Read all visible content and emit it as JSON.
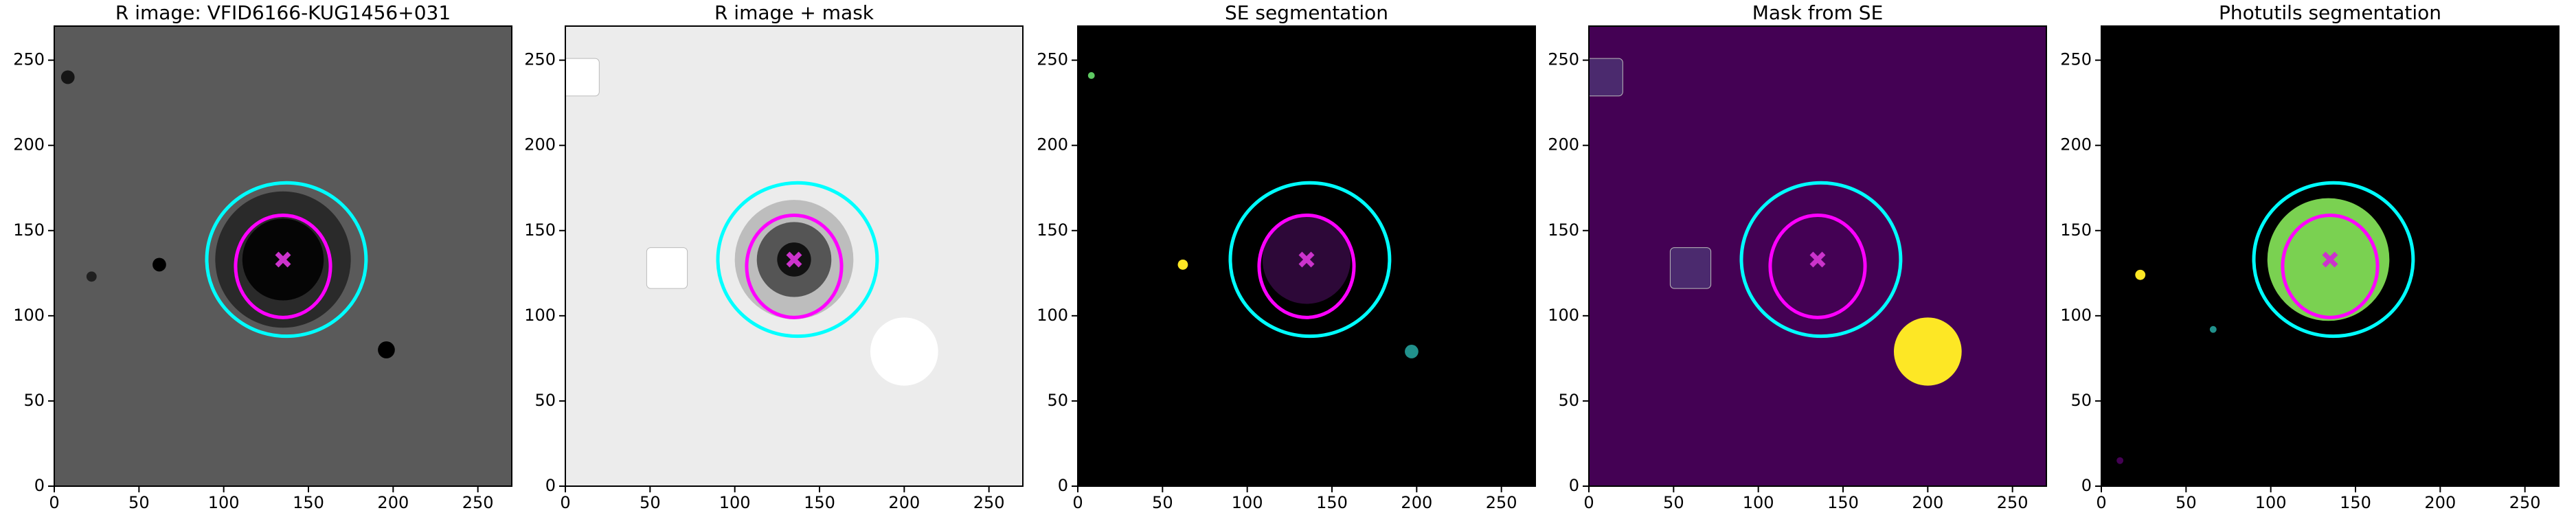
{
  "chart_data": [
    {
      "type": "image",
      "title": "R image: VFID6166-KUG1456+031",
      "background": "#5a5a5a",
      "xlim": [
        0,
        270
      ],
      "ylim": [
        0,
        270
      ],
      "xticks": [
        0,
        50,
        100,
        150,
        200,
        250
      ],
      "yticks": [
        0,
        50,
        100,
        150,
        200,
        250
      ],
      "regions": [
        {
          "shape": "circle",
          "cx": 135,
          "cy": 133,
          "r": 40,
          "color": "#2a2a2a"
        },
        {
          "shape": "circle",
          "cx": 135,
          "cy": 133,
          "r": 24,
          "color": "#050505"
        },
        {
          "shape": "circle",
          "cx": 196,
          "cy": 80,
          "r": 5,
          "color": "#000000"
        },
        {
          "shape": "circle",
          "cx": 62,
          "cy": 130,
          "r": 4,
          "color": "#000000"
        },
        {
          "shape": "circle",
          "cx": 8,
          "cy": 240,
          "r": 4,
          "color": "#151515"
        },
        {
          "shape": "circle",
          "cx": 22,
          "cy": 123,
          "r": 3,
          "color": "#202020"
        }
      ],
      "ellipses": [
        {
          "cx": 137,
          "cy": 133,
          "rx": 47,
          "ry": 45,
          "color": "#00ffff"
        },
        {
          "cx": 135,
          "cy": 129,
          "rx": 28,
          "ry": 30,
          "color": "#ff00ff"
        }
      ],
      "marker": {
        "x": 135,
        "y": 133,
        "color": "#cc33cc"
      }
    },
    {
      "type": "image",
      "title": "R image + mask",
      "background": "#ececec",
      "xlim": [
        0,
        270
      ],
      "ylim": [
        0,
        270
      ],
      "xticks": [
        0,
        50,
        100,
        150,
        200,
        250
      ],
      "yticks": [
        0,
        50,
        100,
        150,
        200,
        250
      ],
      "regions": [
        {
          "shape": "circle",
          "cx": 135,
          "cy": 133,
          "r": 35,
          "color": "#bdbdbd"
        },
        {
          "shape": "circle",
          "cx": 135,
          "cy": 133,
          "r": 22,
          "color": "#555555"
        },
        {
          "shape": "circle",
          "cx": 135,
          "cy": 133,
          "r": 10,
          "color": "#111111"
        },
        {
          "shape": "circle",
          "cx": 200,
          "cy": 79,
          "r": 20,
          "color": "#ffffff"
        },
        {
          "shape": "square",
          "cx": 60,
          "cy": 128,
          "r": 12,
          "color": "#ffffff"
        },
        {
          "shape": "square",
          "cx": 9,
          "cy": 240,
          "r": 11,
          "color": "#ffffff"
        }
      ],
      "ellipses": [
        {
          "cx": 137,
          "cy": 133,
          "rx": 47,
          "ry": 45,
          "color": "#00ffff"
        },
        {
          "cx": 135,
          "cy": 129,
          "rx": 28,
          "ry": 30,
          "color": "#ff00ff"
        }
      ],
      "marker": {
        "x": 135,
        "y": 133,
        "color": "#cc33cc"
      }
    },
    {
      "type": "image",
      "title": "SE segmentation",
      "background": "#000000",
      "xlim": [
        0,
        270
      ],
      "ylim": [
        0,
        270
      ],
      "xticks": [
        0,
        50,
        100,
        150,
        200,
        250
      ],
      "yticks": [
        0,
        50,
        100,
        150,
        200,
        250
      ],
      "regions": [
        {
          "shape": "circle",
          "cx": 135,
          "cy": 133,
          "r": 26,
          "color": "#2d0838"
        },
        {
          "shape": "circle",
          "cx": 197,
          "cy": 79,
          "r": 4,
          "color": "#21918c"
        },
        {
          "shape": "circle",
          "cx": 62,
          "cy": 130,
          "r": 3,
          "color": "#fde725"
        },
        {
          "shape": "circle",
          "cx": 8,
          "cy": 241,
          "r": 2,
          "color": "#5ec962"
        }
      ],
      "ellipses": [
        {
          "cx": 137,
          "cy": 133,
          "rx": 47,
          "ry": 45,
          "color": "#00ffff"
        },
        {
          "cx": 135,
          "cy": 129,
          "rx": 28,
          "ry": 30,
          "color": "#ff00ff"
        }
      ],
      "marker": {
        "x": 135,
        "y": 133,
        "color": "#cc33cc"
      }
    },
    {
      "type": "image",
      "title": "Mask from SE",
      "background": "#440154",
      "xlim": [
        0,
        270
      ],
      "ylim": [
        0,
        270
      ],
      "xticks": [
        0,
        50,
        100,
        150,
        200,
        250
      ],
      "yticks": [
        0,
        50,
        100,
        150,
        200,
        250
      ],
      "regions": [
        {
          "shape": "circle",
          "cx": 200,
          "cy": 79,
          "r": 20,
          "color": "#fde725"
        },
        {
          "shape": "square",
          "cx": 60,
          "cy": 128,
          "r": 12,
          "color": "#4b2a6e"
        },
        {
          "shape": "square",
          "cx": 9,
          "cy": 240,
          "r": 11,
          "color": "#4b2a6e"
        }
      ],
      "ellipses": [
        {
          "cx": 137,
          "cy": 133,
          "rx": 47,
          "ry": 45,
          "color": "#00ffff"
        },
        {
          "cx": 135,
          "cy": 129,
          "rx": 28,
          "ry": 30,
          "color": "#ff00ff"
        }
      ],
      "marker": {
        "x": 135,
        "y": 133,
        "color": "#cc33cc"
      }
    },
    {
      "type": "image",
      "title": "Photutils segmentation",
      "background": "#000000",
      "xlim": [
        0,
        270
      ],
      "ylim": [
        0,
        270
      ],
      "xticks": [
        0,
        50,
        100,
        150,
        200,
        250
      ],
      "yticks": [
        0,
        50,
        100,
        150,
        200,
        250
      ],
      "regions": [
        {
          "shape": "circle",
          "cx": 134,
          "cy": 133,
          "r": 36,
          "color": "#7ad151"
        },
        {
          "shape": "circle",
          "cx": 23,
          "cy": 124,
          "r": 3,
          "color": "#fde725"
        },
        {
          "shape": "circle",
          "cx": 66,
          "cy": 92,
          "r": 2,
          "color": "#21918c"
        },
        {
          "shape": "circle",
          "cx": 11,
          "cy": 15,
          "r": 2,
          "color": "#440154"
        }
      ],
      "ellipses": [
        {
          "cx": 137,
          "cy": 133,
          "rx": 47,
          "ry": 45,
          "color": "#00ffff"
        },
        {
          "cx": 135,
          "cy": 129,
          "rx": 28,
          "ry": 30,
          "color": "#ff00ff"
        }
      ],
      "marker": {
        "x": 135,
        "y": 133,
        "color": "#cc33cc"
      }
    }
  ]
}
